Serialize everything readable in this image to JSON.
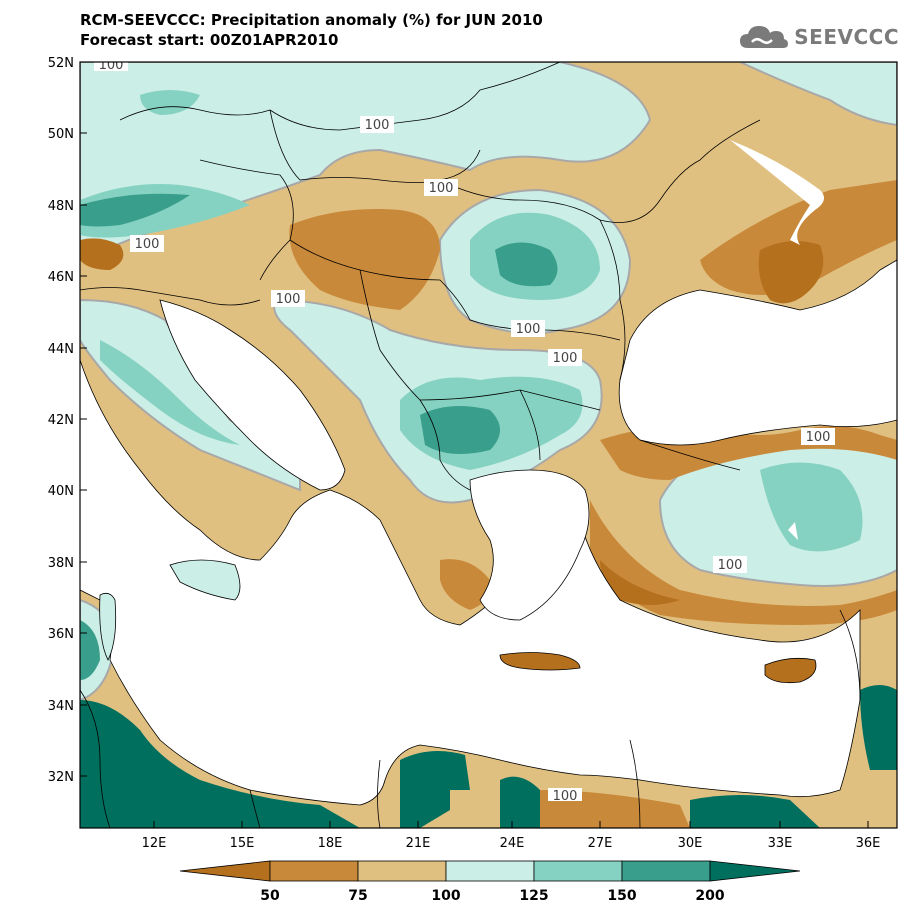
{
  "title": {
    "line1": "RCM-SEEVCCC: Precipitation anomaly (%) for JUN 2010",
    "line2": "Forecast start: 00Z01APR2010"
  },
  "logo": {
    "text": "SEEVCCC",
    "icon": "cloud-icon"
  },
  "axes": {
    "lat_labels": [
      "52N",
      "50N",
      "48N",
      "46N",
      "44N",
      "42N",
      "40N",
      "38N",
      "36N",
      "34N",
      "32N"
    ],
    "lon_labels": [
      "12E",
      "15E",
      "18E",
      "21E",
      "24E",
      "27E",
      "30E",
      "33E",
      "36E"
    ]
  },
  "contour_labels": [
    "100",
    "100",
    "100",
    "100",
    "100",
    "100",
    "100",
    "100",
    "100",
    "100"
  ],
  "colorbar": {
    "levels": [
      "50",
      "75",
      "100",
      "125",
      "150",
      "200"
    ],
    "colors": [
      "#b5701e",
      "#c9893a",
      "#e0c080",
      "#cbeee6",
      "#86d2c2",
      "#3a9e8c",
      "#006f5e"
    ]
  },
  "palette": {
    "very_dry": "#b5701e",
    "dry": "#c9893a",
    "slightly_dry": "#e0c080",
    "slightly_wet": "#cbeee6",
    "wet": "#86d2c2",
    "very_wet": "#3a9e8c",
    "extreme_wet": "#006f5e",
    "sea": "#ffffff",
    "contour": "#a8a8a8"
  }
}
